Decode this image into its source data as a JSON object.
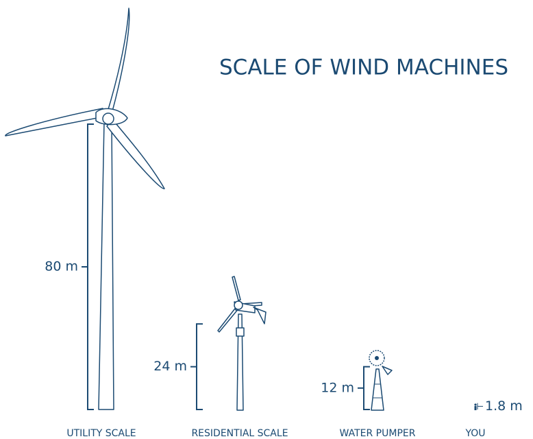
{
  "title": "SCALE OF WIND MACHINES",
  "machines": [
    {
      "label": "UTILITY SCALE",
      "height": 80,
      "height_label": "80 m"
    },
    {
      "label": "RESIDENTIAL SCALE",
      "height": 24,
      "height_label": "24 m"
    },
    {
      "label": "WATER PUMPER",
      "height": 12,
      "height_label": "12 m"
    },
    {
      "label": "YOU",
      "height": 1.8,
      "height_label": "1.8 m"
    }
  ]
}
